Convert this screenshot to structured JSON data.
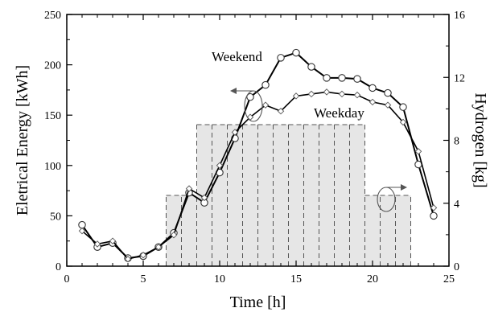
{
  "chart_data": {
    "type": "line",
    "xlabel": "Time [h]",
    "ylabel": "Eletrical Energy [kWh]",
    "y2label": "Hydrogen [kg]",
    "xlim": [
      0,
      25
    ],
    "ylim": [
      0,
      250
    ],
    "y2lim": [
      0,
      16
    ],
    "xticks": [
      0,
      5,
      10,
      15,
      20,
      25
    ],
    "yticks": [
      0,
      50,
      100,
      150,
      200,
      250
    ],
    "y2ticks": [
      0,
      4,
      8,
      12,
      16
    ],
    "grid": false,
    "series": [
      {
        "name": "Weekend",
        "marker": "circle",
        "color": "#000000",
        "x": [
          1,
          2,
          3,
          4,
          5,
          6,
          7,
          8,
          9,
          10,
          11,
          12,
          13,
          14,
          15,
          16,
          17,
          18,
          19,
          20,
          21,
          22,
          23,
          24
        ],
        "y": [
          41,
          19,
          23,
          8,
          10,
          19,
          33,
          73,
          63,
          93,
          127,
          168,
          180,
          207,
          212,
          198,
          187,
          187,
          186,
          177,
          172,
          158,
          101,
          50
        ]
      },
      {
        "name": "Weekday",
        "marker": "diamond",
        "color": "#000000",
        "x": [
          1,
          2,
          3,
          4,
          5,
          6,
          7,
          8,
          9,
          10,
          11,
          12,
          13,
          14,
          15,
          16,
          17,
          18,
          19,
          20,
          21,
          22,
          23,
          24
        ],
        "y": [
          35,
          22,
          25,
          7,
          11,
          19,
          31,
          77,
          68,
          100,
          133,
          148,
          160,
          154,
          169,
          171,
          173,
          171,
          170,
          163,
          160,
          143,
          114,
          58
        ]
      }
    ],
    "hydrogen_bars": {
      "axis": "right",
      "fill": "#e6e6e6",
      "edge": "#555555",
      "x_start": [
        6.5,
        7.5,
        8.5,
        9.5,
        10.5,
        11.5,
        12.5,
        13.5,
        14.5,
        15.5,
        16.5,
        17.5,
        18.5,
        19.5,
        20.5,
        21.5
      ],
      "width": 1,
      "values": [
        4.5,
        4.5,
        9,
        9,
        9,
        9,
        9,
        9,
        9,
        9,
        9,
        9,
        9,
        4.5,
        4.5,
        4.5
      ]
    },
    "annotations": {
      "weekend_label": "Weekend",
      "weekday_label": "Weekday"
    }
  }
}
